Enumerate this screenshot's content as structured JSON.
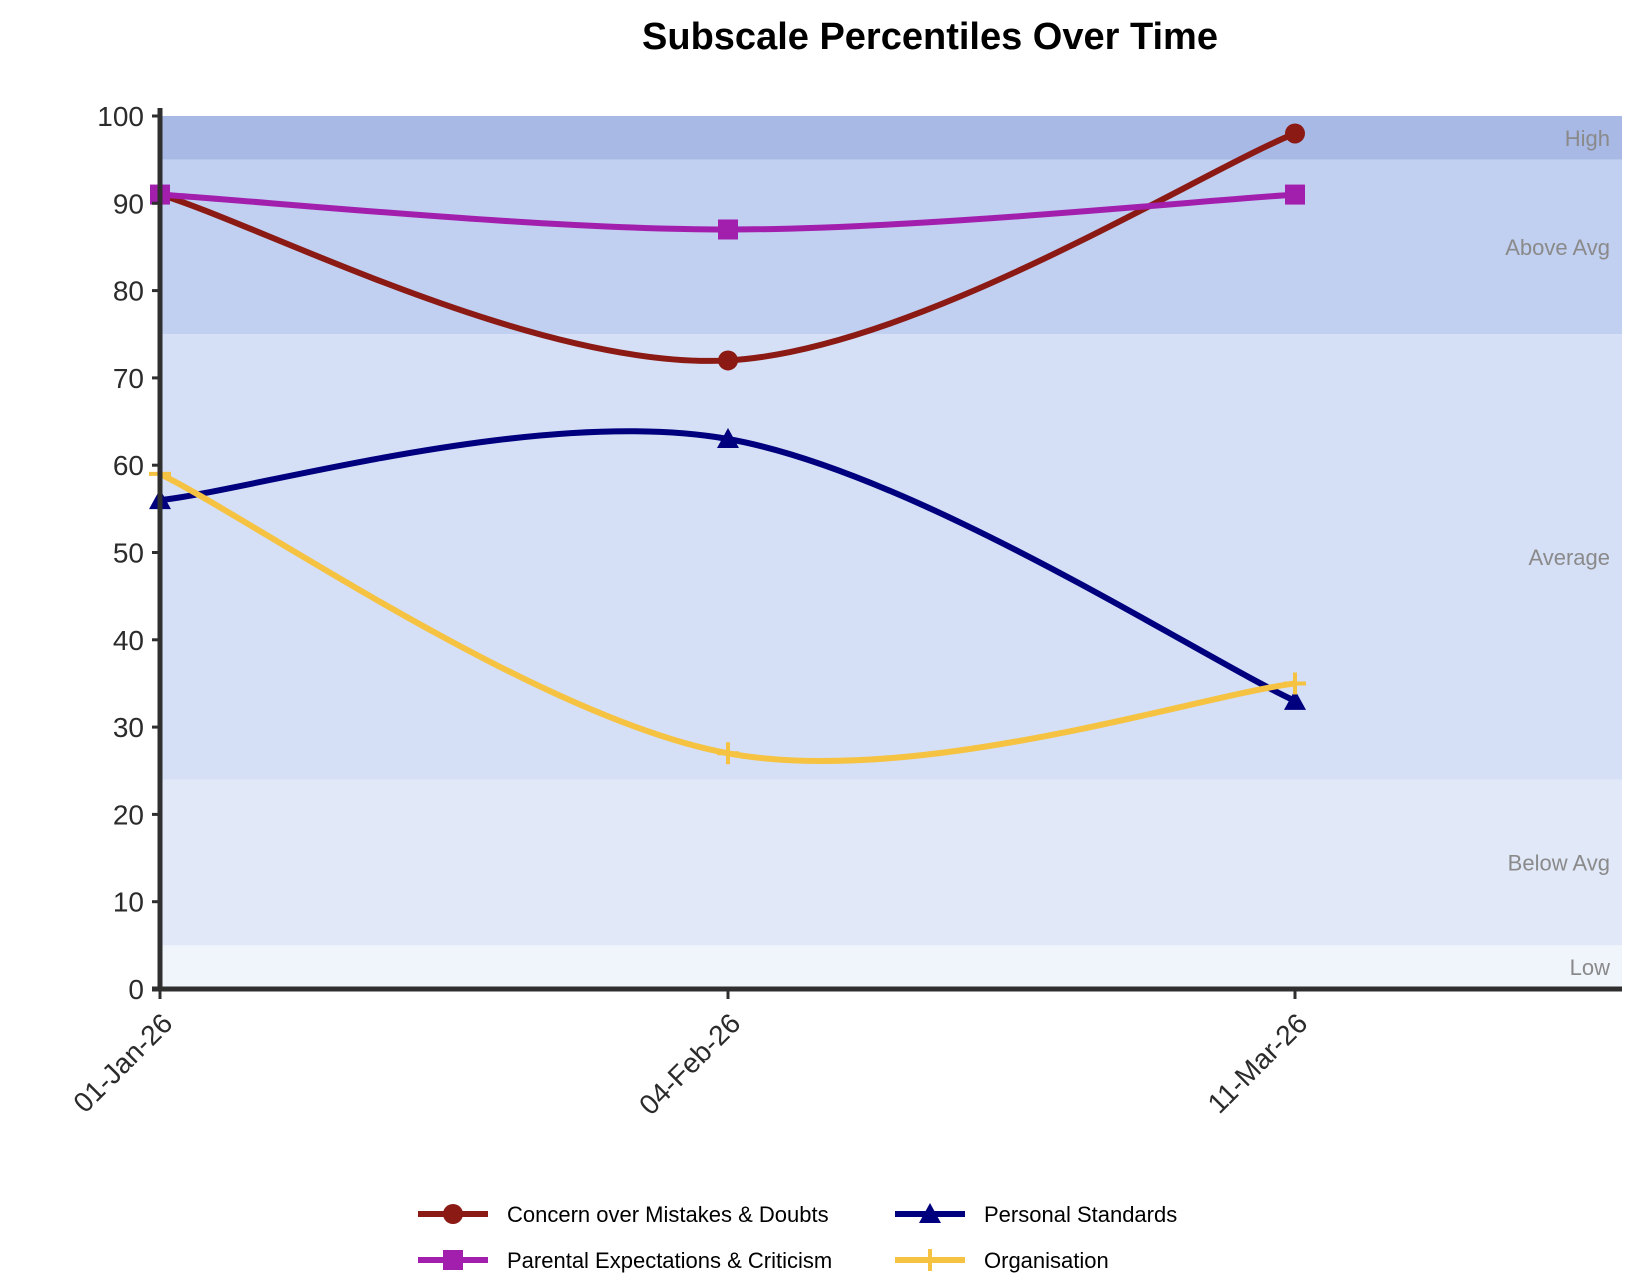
{
  "chart_data": {
    "type": "line",
    "title": "Subscale Percentiles Over Time",
    "xlabel": "",
    "ylabel": "",
    "categories": [
      "01-Jan-26",
      "04-Feb-26",
      "11-Mar-26"
    ],
    "ylim": [
      0,
      100
    ],
    "yticks": [
      0,
      10,
      20,
      30,
      40,
      50,
      60,
      70,
      80,
      90,
      100
    ],
    "grid": false,
    "legend_position": "bottom",
    "bands": [
      {
        "label": "Low",
        "from": 0,
        "to": 5,
        "color": "#f0f4fb"
      },
      {
        "label": "Below Avg",
        "from": 5,
        "to": 24,
        "color": "#e1e8f8"
      },
      {
        "label": "Average",
        "from": 24,
        "to": 75,
        "color": "#d5e0f6"
      },
      {
        "label": "Above Avg",
        "from": 75,
        "to": 95,
        "color": "#c1cff0"
      },
      {
        "label": "High",
        "from": 95,
        "to": 100,
        "color": "#a8b9e6"
      }
    ],
    "series": [
      {
        "name": "Concern over Mistakes & Doubts",
        "values": [
          91,
          72,
          98
        ],
        "color": "#8b1a14",
        "marker": "circle"
      },
      {
        "name": "Personal Standards",
        "values": [
          56,
          63,
          33
        ],
        "color": "#00007f",
        "marker": "triangle"
      },
      {
        "name": "Parental Expectations & Criticism",
        "values": [
          91,
          87,
          91
        ],
        "color": "#a21fae",
        "marker": "square"
      },
      {
        "name": "Organisation",
        "values": [
          59,
          27,
          35
        ],
        "color": "#f5c242",
        "marker": "plus"
      }
    ]
  }
}
